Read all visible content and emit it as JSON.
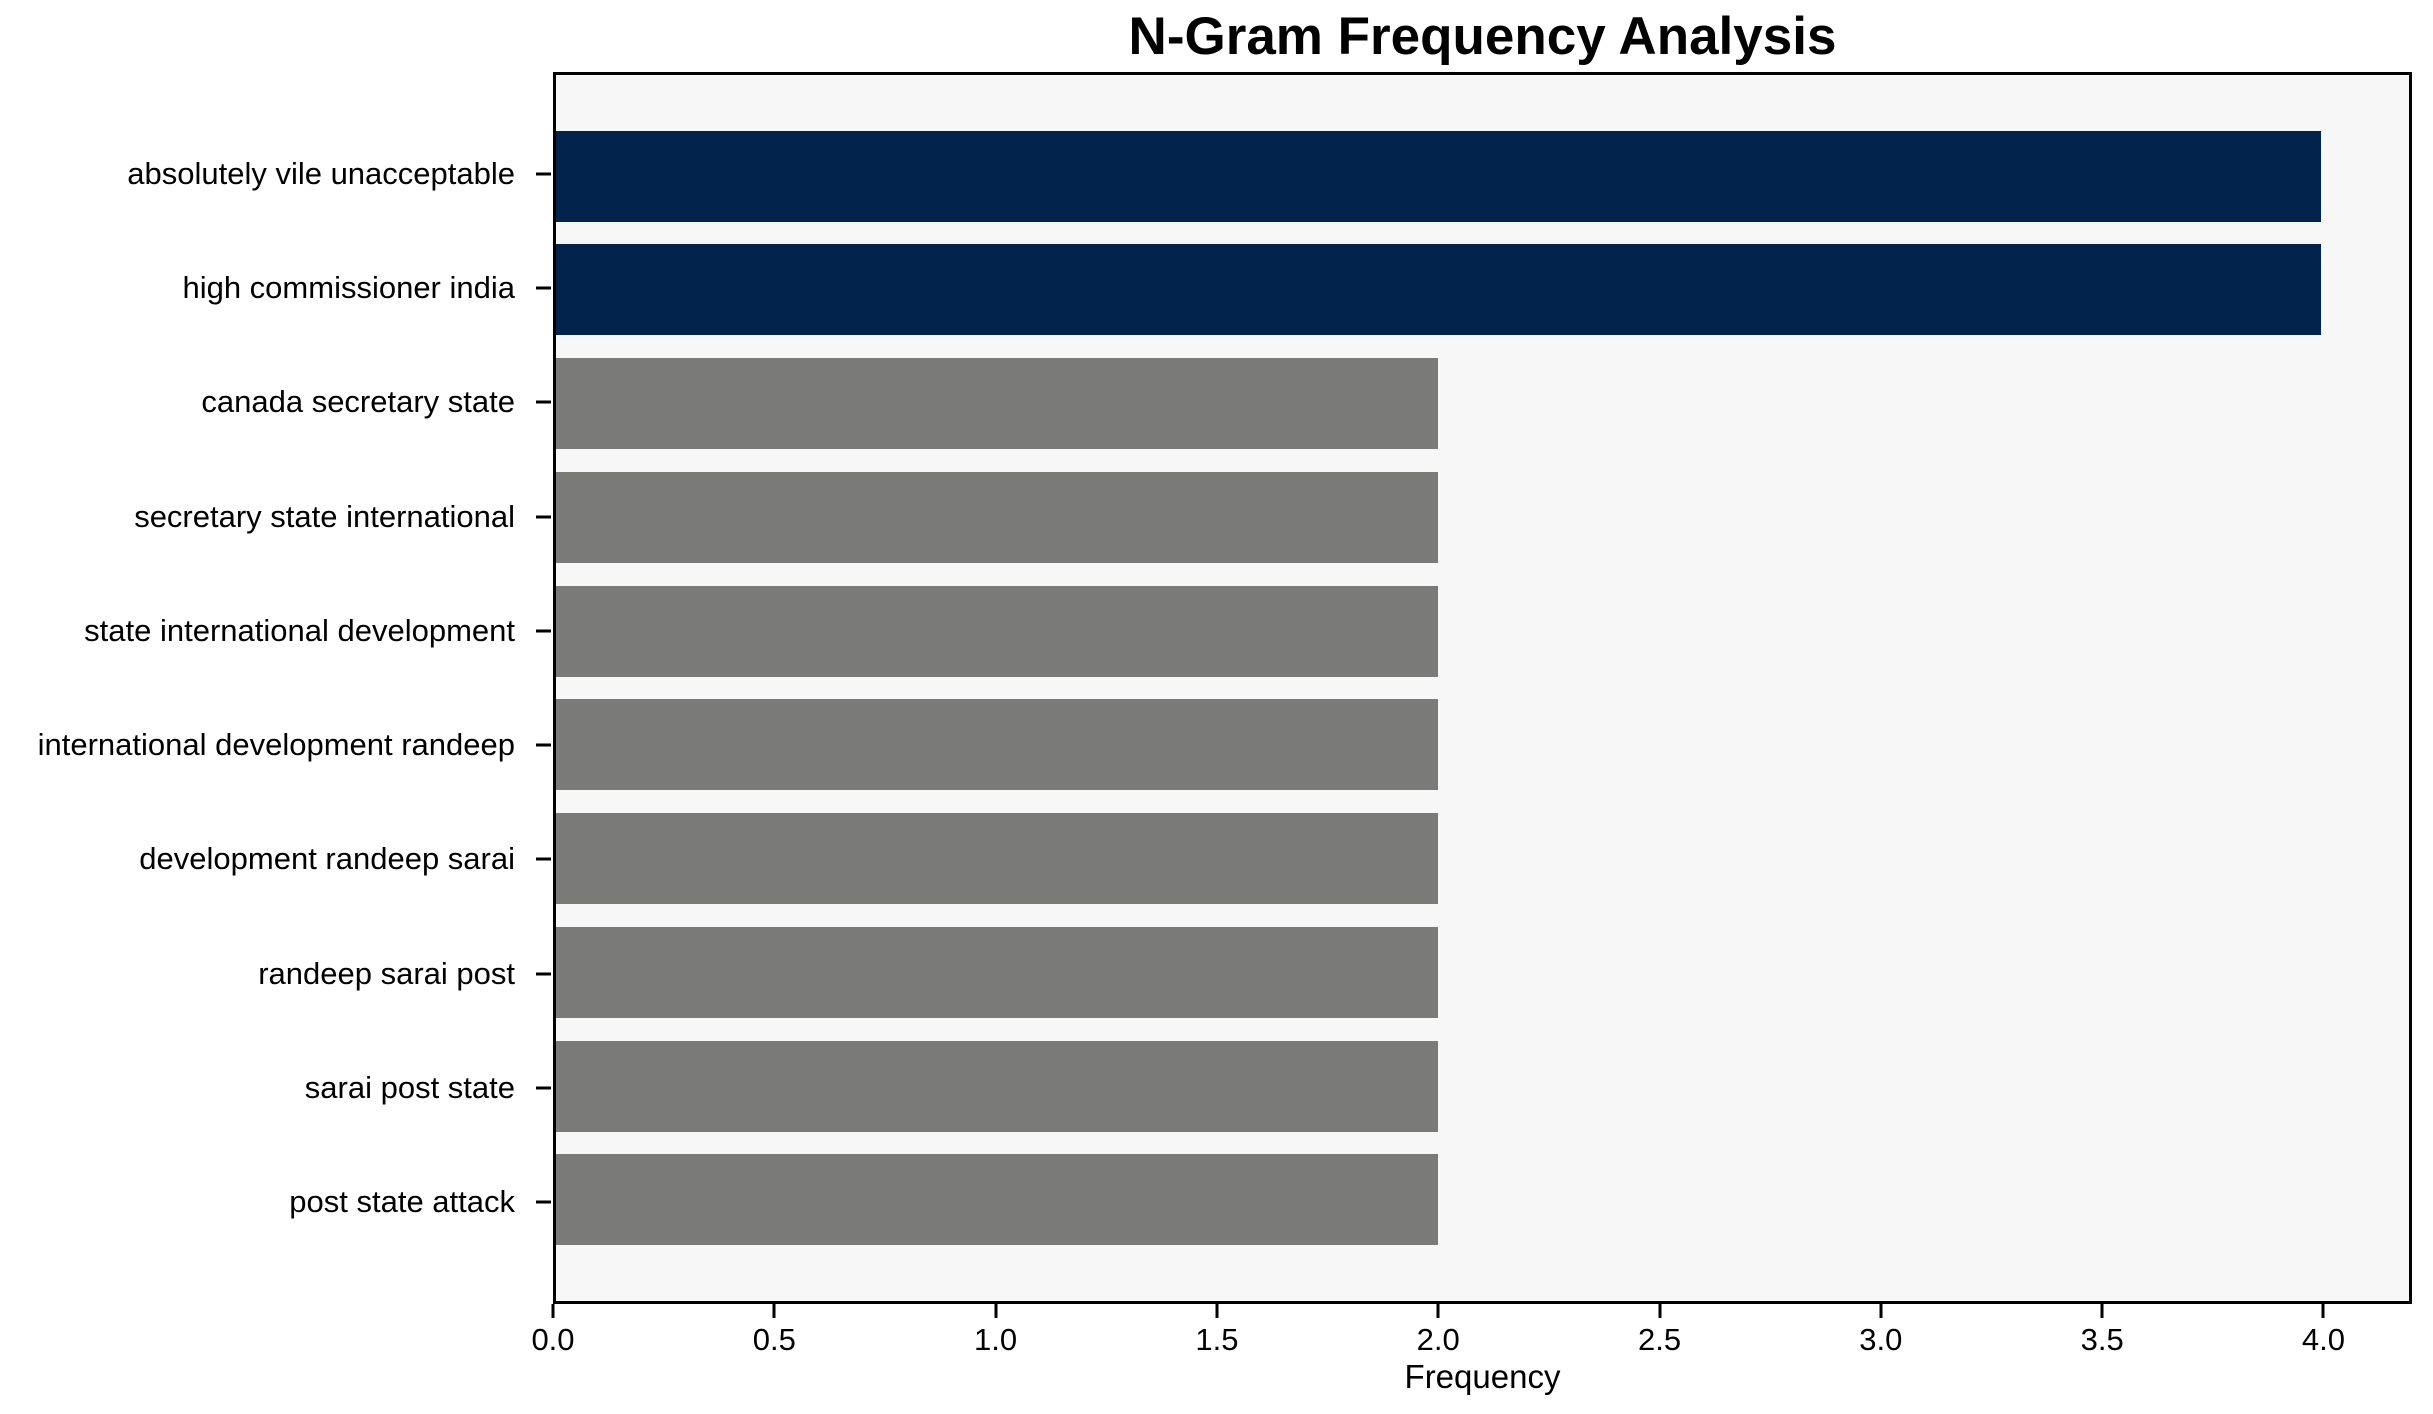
{
  "figure": {
    "background": "#ffffff"
  },
  "chart_data": {
    "type": "bar",
    "orientation": "horizontal",
    "title": "N-Gram Frequency Analysis",
    "xlabel": "Frequency",
    "ylabel": "",
    "categories": [
      "absolutely vile unacceptable",
      "high commissioner india",
      "canada secretary state",
      "secretary state international",
      "state international development",
      "international development randeep",
      "development randeep sarai",
      "randeep sarai post",
      "sarai post state",
      "post state attack"
    ],
    "values": [
      4,
      4,
      2,
      2,
      2,
      2,
      2,
      2,
      2,
      2
    ],
    "bar_colors": [
      "#02234c",
      "#02234c",
      "#7a7a78",
      "#7a7a78",
      "#7a7a78",
      "#7a7a78",
      "#7a7a78",
      "#7a7a78",
      "#7a7a78",
      "#7a7a78"
    ],
    "highlight_color": "#02234c",
    "default_color": "#7a7a78",
    "xlim": [
      0,
      4.2
    ],
    "xticks": [
      0.0,
      0.5,
      1.0,
      1.5,
      2.0,
      2.5,
      3.0,
      3.5,
      4.0
    ],
    "xtick_labels": [
      "0.0",
      "0.5",
      "1.0",
      "1.5",
      "2.0",
      "2.5",
      "3.0",
      "3.5",
      "4.0"
    ],
    "plot_background": "#f7f7f7",
    "spine_color": "#000000",
    "grid": false,
    "legend_position": "none"
  }
}
